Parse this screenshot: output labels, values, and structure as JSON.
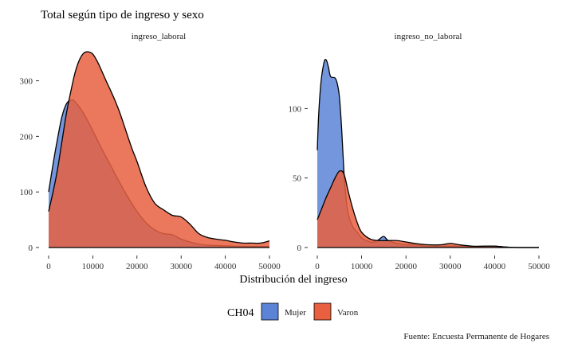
{
  "chart_data": {
    "type": "area",
    "title": "Total según tipo de ingreso y sexo",
    "xlabel": "Distribución del ingreso",
    "ylabel": "",
    "caption": "Fuente: Encuesta Permanente de Hogares",
    "legend": {
      "title": "CH04",
      "position": "bottom",
      "entries": [
        {
          "name": "Mujer",
          "color": "#5b84d6"
        },
        {
          "name": "Varon",
          "color": "#e8603f"
        }
      ]
    },
    "grid": false,
    "facets": [
      {
        "label": "ingreso_laboral",
        "xlim": [
          0,
          50000
        ],
        "ylim": [
          0,
          355
        ],
        "x_ticks": [
          0,
          10000,
          20000,
          30000,
          40000,
          50000
        ],
        "y_ticks": [
          0,
          100,
          200,
          300
        ],
        "series": [
          {
            "name": "Mujer",
            "x": [
              0,
              1000,
              2000,
              3000,
              4000,
              5000,
              6000,
              8000,
              10000,
              12000,
              14000,
              16000,
              18000,
              20000,
              22000,
              24000,
              26000,
              28000,
              30000,
              32000,
              35000,
              40000,
              45000,
              50000
            ],
            "y": [
              100,
              150,
              195,
              235,
              258,
              265,
              262,
              240,
              210,
              178,
              148,
              118,
              90,
              65,
              45,
              32,
              25,
              23,
              15,
              10,
              5,
              3,
              2,
              2
            ]
          },
          {
            "name": "Varon",
            "x": [
              0,
              1000,
              2000,
              3000,
              4000,
              5000,
              6000,
              7000,
              8000,
              9000,
              10000,
              11000,
              12000,
              13000,
              14000,
              15000,
              16000,
              17000,
              18000,
              19000,
              20000,
              22000,
              24000,
              26000,
              28000,
              30000,
              32000,
              34000,
              36000,
              38000,
              40000,
              42000,
              44000,
              46000,
              48000,
              50000
            ],
            "y": [
              65,
              100,
              140,
              190,
              240,
              280,
              315,
              338,
              350,
              352,
              348,
              335,
              318,
              300,
              283,
              265,
              245,
              222,
              198,
              175,
              155,
              110,
              80,
              68,
              58,
              55,
              42,
              25,
              18,
              15,
              13,
              10,
              8,
              8,
              8,
              12
            ]
          }
        ]
      },
      {
        "label": "ingreso_no_laboral",
        "xlim": [
          0,
          50000
        ],
        "ylim": [
          0,
          142
        ],
        "x_ticks": [
          0,
          10000,
          20000,
          30000,
          40000,
          50000
        ],
        "y_ticks": [
          0,
          50,
          100
        ],
        "series": [
          {
            "name": "Mujer",
            "x": [
              0,
              300,
              800,
              1500,
              2000,
              2500,
              3000,
              4000,
              4500,
              5000,
              5500,
              6000,
              6500,
              7000,
              8000,
              9000,
              10000,
              11000,
              12000,
              13000,
              14000,
              15000,
              16000,
              18000,
              20000,
              22000,
              25000,
              28000,
              30000,
              32000,
              35000,
              38000,
              40000,
              42000,
              45000,
              50000
            ],
            "y": [
              70,
              95,
              118,
              133,
              135,
              130,
              123,
              122,
              118,
              108,
              85,
              55,
              35,
              24,
              15,
              11,
              7,
              5,
              4,
              4,
              6,
              8,
              5,
              3,
              2,
              2,
              1,
              1,
              1,
              1,
              0.5,
              1,
              1,
              0.5,
              0,
              0
            ]
          },
          {
            "name": "Varon",
            "x": [
              0,
              1000,
              2000,
              3000,
              4000,
              5000,
              6000,
              7000,
              8000,
              9000,
              10000,
              12000,
              14000,
              16000,
              18000,
              20000,
              22000,
              25000,
              28000,
              30000,
              32000,
              35000,
              38000,
              40000,
              42000,
              45000,
              50000
            ],
            "y": [
              20,
              28,
              36,
              43,
              50,
              55,
              53,
              40,
              28,
              18,
              11,
              6,
              5,
              5,
              5,
              4,
              3,
              2,
              2,
              3,
              2,
              1,
              1,
              1,
              0.5,
              0,
              0
            ]
          }
        ]
      }
    ]
  }
}
